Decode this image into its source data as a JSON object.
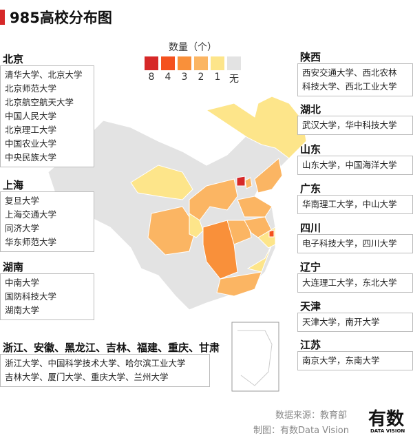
{
  "header": {
    "title": "985高校分布图"
  },
  "legend": {
    "title": "数量（个）",
    "items": [
      {
        "label": "8",
        "color": "#d62828"
      },
      {
        "label": "4",
        "color": "#f4511e"
      },
      {
        "label": "3",
        "color": "#f9903a"
      },
      {
        "label": "2",
        "color": "#fbb563"
      },
      {
        "label": "1",
        "color": "#fde58a"
      },
      {
        "label": "无",
        "color": "#e3e3e3"
      }
    ]
  },
  "left_groups": [
    {
      "region": "北京",
      "universities": [
        "清华大学、北京大学",
        "北京师范大学",
        "北京航空航天大学",
        "中国人民大学",
        "北京理工大学",
        "中国农业大学",
        "中央民族大学"
      ]
    },
    {
      "region": "上海",
      "universities": [
        "复旦大学",
        "上海交通大学",
        "同济大学",
        "华东师范大学"
      ]
    },
    {
      "region": "湖南",
      "universities": [
        "中南大学",
        "国防科技大学",
        "湖南大学"
      ]
    }
  ],
  "bottom_group": {
    "region": "浙江、安徽、黑龙江、吉林、福建、重庆、甘肃",
    "universities": [
      "浙江大学、中国科学技术大学、哈尔滨工业大学",
      "吉林大学、厦门大学、重庆大学、兰州大学"
    ]
  },
  "right_groups": [
    {
      "region": "陕西",
      "universities": [
        "西安交通大学、西北农林",
        "科技大学、西北工业大学"
      ]
    },
    {
      "region": "湖北",
      "universities": [
        "武汉大学，华中科技大学"
      ]
    },
    {
      "region": "山东",
      "universities": [
        "山东大学，中国海洋大学"
      ]
    },
    {
      "region": "广东",
      "universities": [
        "华南理工大学，中山大学"
      ]
    },
    {
      "region": "四川",
      "universities": [
        "电子科技大学，四川大学"
      ]
    },
    {
      "region": "辽宁",
      "universities": [
        "大连理工大学，东北大学"
      ]
    },
    {
      "region": "天津",
      "universities": [
        "天津大学，南开大学"
      ]
    },
    {
      "region": "江苏",
      "universities": [
        "南京大学，东南大学"
      ]
    }
  ],
  "footer": {
    "source": "数据来源：教育部",
    "credit": "制图：有数Data Vision",
    "logo": "有数",
    "logo_sub": "DATA VISION"
  }
}
